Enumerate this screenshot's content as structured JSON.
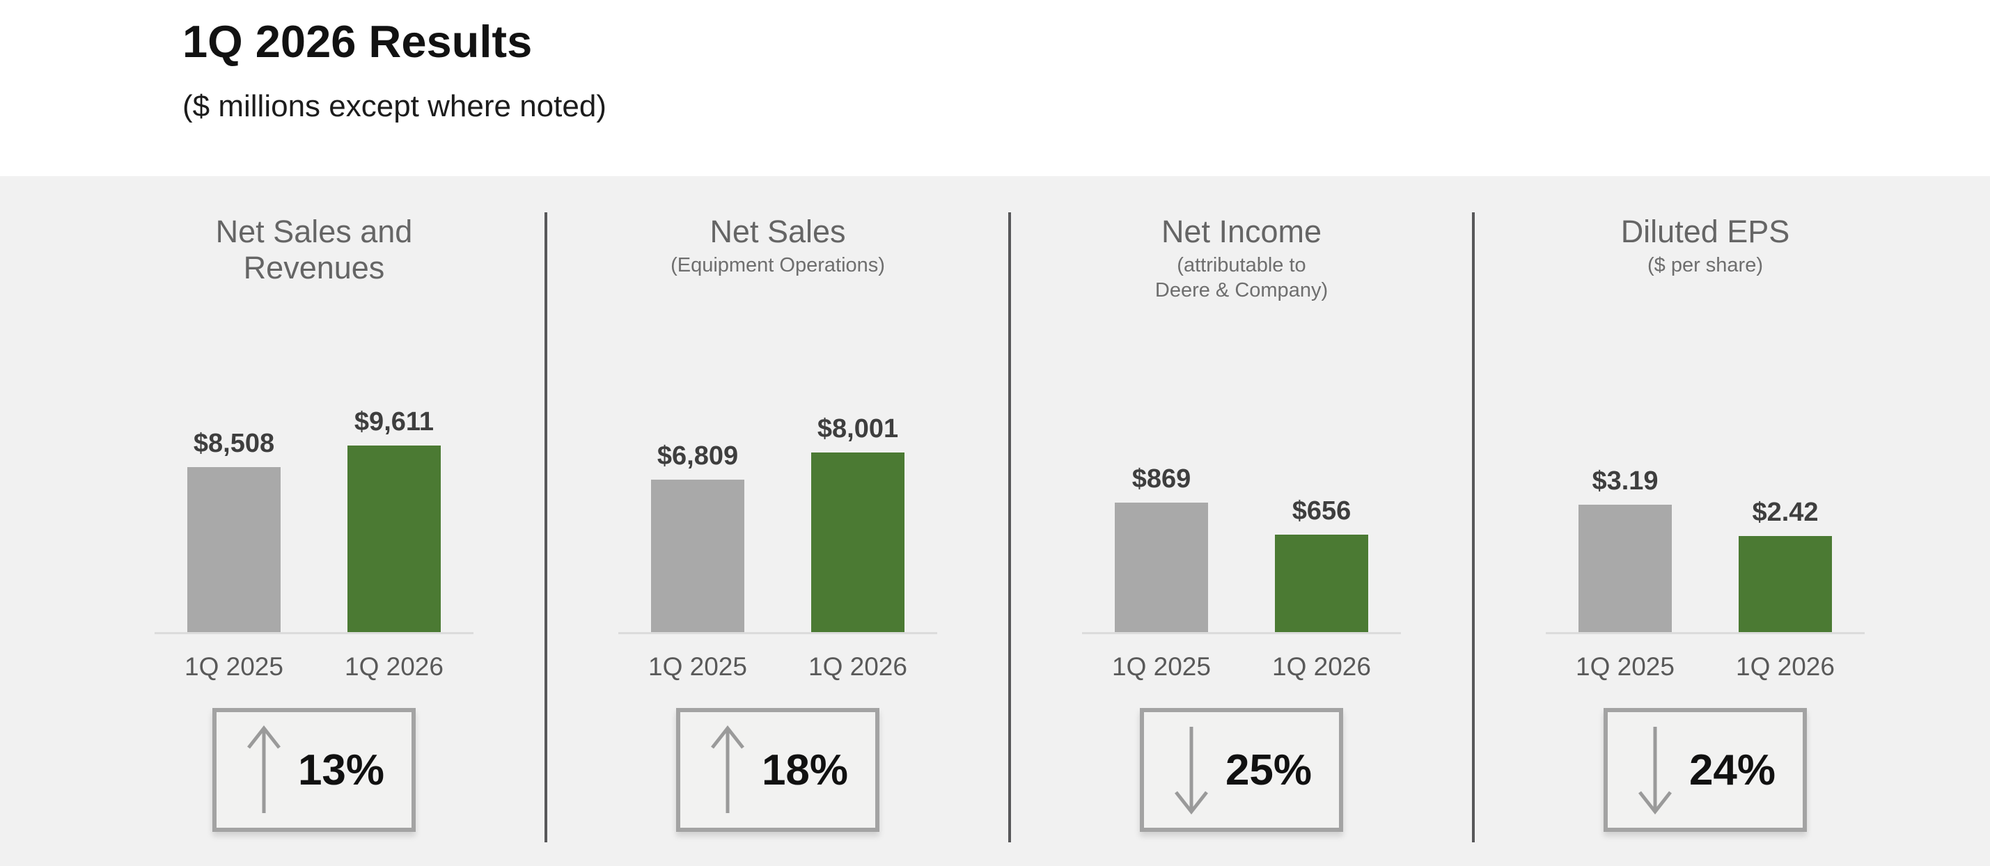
{
  "header": {
    "title": "1Q 2026 Results",
    "subtitle": "($ millions except where noted)"
  },
  "colors": {
    "bar_2025": "#a9a9a9",
    "bar_2026": "#4b7a33",
    "band_background": "#f1f1f1",
    "divider": "#58585a",
    "value_label_text": "#3e3e3e",
    "arrow": "#9a9a9a",
    "box_border": "#a3a3a3"
  },
  "chart_data": [
    {
      "type": "bar",
      "title_lines": [
        "Net Sales and",
        "Revenues"
      ],
      "subtitle_lines": [],
      "categories": [
        "1Q 2025",
        "1Q 2026"
      ],
      "values": [
        8508,
        9611
      ],
      "value_labels": [
        "$8,508",
        "$9,611"
      ],
      "ylim": [
        0,
        9611
      ],
      "legend": "none",
      "grid": "off",
      "change": {
        "direction": "up",
        "label": "13%"
      }
    },
    {
      "type": "bar",
      "title_lines": [
        "Net Sales"
      ],
      "subtitle_lines": [
        "(Equipment Operations)"
      ],
      "categories": [
        "1Q 2025",
        "1Q 2026"
      ],
      "values": [
        6809,
        8001
      ],
      "value_labels": [
        "$6,809",
        "$8,001"
      ],
      "ylim": [
        0,
        8001
      ],
      "legend": "none",
      "grid": "off",
      "change": {
        "direction": "up",
        "label": "18%"
      }
    },
    {
      "type": "bar",
      "title_lines": [
        "Net Income"
      ],
      "subtitle_lines": [
        "(attributable to",
        "Deere & Company)"
      ],
      "categories": [
        "1Q 2025",
        "1Q 2026"
      ],
      "values": [
        869,
        656
      ],
      "value_labels": [
        "$869",
        "$656"
      ],
      "ylim": [
        0,
        869
      ],
      "legend": "none",
      "grid": "off",
      "change": {
        "direction": "down",
        "label": "25%"
      }
    },
    {
      "type": "bar",
      "title_lines": [
        "Diluted EPS"
      ],
      "subtitle_lines": [
        "($ per share)"
      ],
      "categories": [
        "1Q 2025",
        "1Q 2026"
      ],
      "values": [
        3.19,
        2.42
      ],
      "value_labels": [
        "$3.19",
        "$2.42"
      ],
      "ylim": [
        0,
        3.19
      ],
      "legend": "none",
      "grid": "off",
      "change": {
        "direction": "down",
        "label": "24%"
      }
    }
  ]
}
